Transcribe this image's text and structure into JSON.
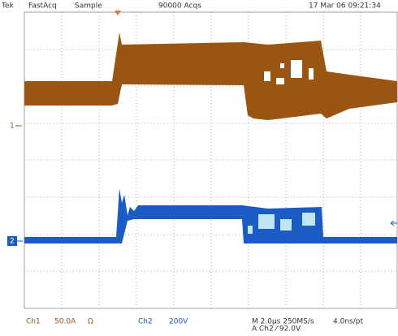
{
  "header": {
    "brand": "Tek",
    "mode": "FastAcq",
    "acquisition": "Sample",
    "count": "90000 Acqs",
    "timestamp": "17 Mar 06 09:21:34"
  },
  "markers": {
    "ch1": "1",
    "ch2": "2"
  },
  "footer": {
    "ch1_label": "Ch1",
    "ch1_scale": "50.0A",
    "ch1_coupling": "Ω",
    "ch2_label": "Ch2",
    "ch2_scale": "200V",
    "timebase": "M 2.0µs 250MS/s",
    "resolution": "4.0ns/pt",
    "trigger": "A  Ch2  ⁄  92.0V"
  }
}
